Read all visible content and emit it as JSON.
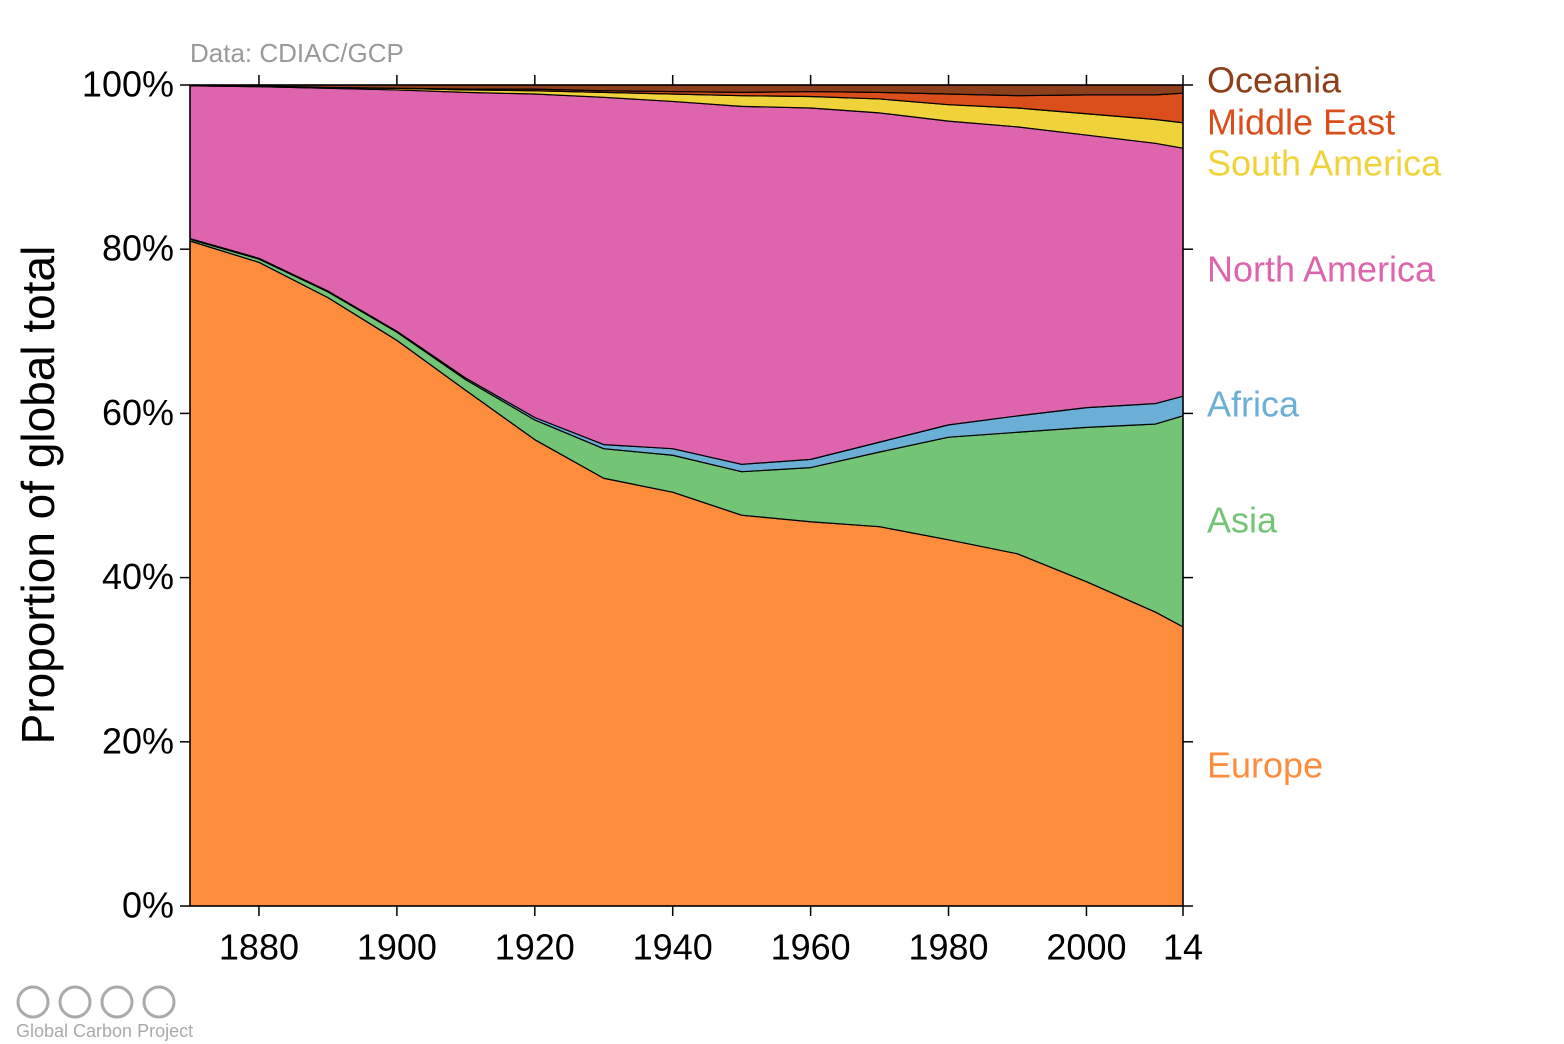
{
  "chart_data": {
    "type": "stacked-area",
    "subtitle": "Data: CDIAC/GCP",
    "y_label": "Proportion of global total",
    "credit": "Global Carbon Project",
    "x": [
      1870,
      1880,
      1890,
      1900,
      1910,
      1920,
      1930,
      1940,
      1950,
      1960,
      1970,
      1980,
      1990,
      2000,
      2010,
      2014
    ],
    "xlim": [
      1870,
      2014
    ],
    "xticks": [
      1880,
      1900,
      1920,
      1940,
      1960,
      1980,
      2000,
      {
        "value": 2014,
        "label": "14"
      }
    ],
    "ylim": [
      0,
      100
    ],
    "yticks": [
      {
        "value": 0,
        "label": "0%"
      },
      {
        "value": 20,
        "label": "20%"
      },
      {
        "value": 40,
        "label": "40%"
      },
      {
        "value": 60,
        "label": "60%"
      },
      {
        "value": 80,
        "label": "80%"
      },
      {
        "value": 100,
        "label": "100%"
      }
    ],
    "series": [
      {
        "name": "Europe",
        "color": "#fd8d3c",
        "values": [
          81.0,
          78.4,
          74.1,
          68.9,
          62.8,
          56.8,
          52.1,
          50.4,
          47.6,
          46.8,
          46.2,
          44.6,
          42.9,
          39.5,
          35.8,
          34.0
        ]
      },
      {
        "name": "Asia",
        "color": "#74c476",
        "values": [
          0.2,
          0.4,
          0.7,
          1.0,
          1.3,
          2.4,
          3.6,
          4.5,
          5.3,
          6.6,
          9.1,
          12.5,
          14.8,
          18.8,
          22.9,
          25.7
        ]
      },
      {
        "name": "Africa",
        "color": "#6baed6",
        "values": [
          0.1,
          0.1,
          0.1,
          0.1,
          0.2,
          0.3,
          0.5,
          0.8,
          0.9,
          1.0,
          1.2,
          1.5,
          2.0,
          2.4,
          2.5,
          2.4
        ]
      },
      {
        "name": "North America",
        "color": "#de64ae",
        "values": [
          18.6,
          20.9,
          24.7,
          29.4,
          34.8,
          39.4,
          42.3,
          42.3,
          43.6,
          42.8,
          40.1,
          37.0,
          35.2,
          33.2,
          31.7,
          30.2
        ]
      },
      {
        "name": "South America",
        "color": "#f0d33a",
        "values": [
          0.0,
          0.1,
          0.1,
          0.2,
          0.3,
          0.4,
          0.6,
          0.9,
          1.3,
          1.4,
          1.7,
          2.0,
          2.3,
          2.6,
          2.9,
          3.1
        ]
      },
      {
        "name": "Middle East",
        "color": "#d94e1a",
        "values": [
          0.0,
          0.0,
          0.0,
          0.0,
          0.1,
          0.2,
          0.2,
          0.3,
          0.4,
          0.6,
          0.8,
          1.3,
          1.5,
          2.3,
          3.0,
          3.6
        ]
      },
      {
        "name": "Oceania",
        "color": "#8c3f1a",
        "values": [
          0.1,
          0.1,
          0.3,
          0.4,
          0.5,
          0.5,
          0.7,
          0.8,
          0.9,
          0.8,
          0.9,
          1.1,
          1.3,
          1.2,
          1.2,
          1.0
        ]
      }
    ]
  }
}
